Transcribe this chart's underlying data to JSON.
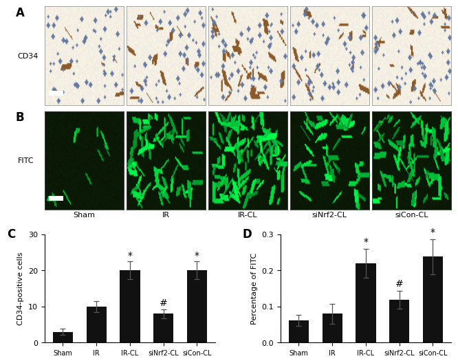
{
  "panel_labels": [
    "A",
    "B",
    "C",
    "D"
  ],
  "row_labels": [
    "CD34",
    "FITC"
  ],
  "col_labels": [
    "Sham",
    "IR",
    "IR-CL",
    "siNrf2-CL",
    "siCon-CL"
  ],
  "chart_C": {
    "categories": [
      "Sham",
      "IR",
      "IR-CL",
      "siNrf2-CL",
      "siCon-CL"
    ],
    "values": [
      3.0,
      10.0,
      20.0,
      8.0,
      20.0
    ],
    "errors": [
      0.8,
      1.5,
      2.5,
      1.2,
      2.5
    ],
    "ylabel": "CD34-positive cells",
    "ylim": [
      0,
      30
    ],
    "yticks": [
      0,
      10,
      20,
      30
    ],
    "significance": [
      "",
      "",
      "*",
      "#",
      "*"
    ],
    "bar_color": "#111111",
    "error_color": "#555555"
  },
  "chart_D": {
    "categories": [
      "Sham",
      "IR",
      "IR-CL",
      "siNrf2-CL",
      "siCon-CL"
    ],
    "values": [
      0.062,
      0.08,
      0.22,
      0.118,
      0.238
    ],
    "errors": [
      0.015,
      0.028,
      0.04,
      0.025,
      0.048
    ],
    "ylabel": "Percentage of FITC",
    "ylim": [
      0.0,
      0.3
    ],
    "yticks": [
      0.0,
      0.1,
      0.2,
      0.3
    ],
    "significance": [
      "",
      "",
      "*",
      "#",
      "*"
    ],
    "bar_color": "#111111",
    "error_color": "#555555"
  },
  "image_bg_A": [
    245,
    240,
    228
  ],
  "image_bg_B": [
    10,
    22,
    5
  ],
  "fig_bg": "#ffffff",
  "n_dots_A": [
    5,
    18,
    30,
    14,
    20
  ],
  "n_dots_B": [
    10,
    70,
    100,
    50,
    80
  ]
}
